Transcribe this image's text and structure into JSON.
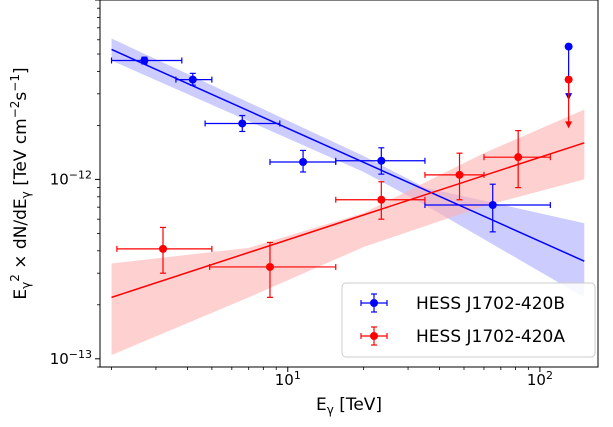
{
  "chart_data": {
    "type": "scatter",
    "xscale": "log",
    "yscale": "log",
    "xlim": [
      1.8,
      170
    ],
    "ylim": [
      9e-14,
      1e-11
    ],
    "xlabel_base": "E",
    "xlabel_sub": "γ",
    "xlabel_unit": "[TeV]",
    "ylabel": "E_γ² × dN/dE_γ [TeV cm⁻²s⁻¹]",
    "ylabel_parts": {
      "e": "E",
      "sub": "γ",
      "sup": "2",
      "mid": " × dN/dE",
      "sub2": "γ",
      "unit": " [TeV cm",
      "unit_sup": "−2",
      "unit_end": "s",
      "unit_sup2": "−1",
      "close": "]"
    },
    "x_ticks": [
      {
        "value": 10,
        "base": "10",
        "exp": "1"
      },
      {
        "value": 100,
        "base": "10",
        "exp": "2"
      }
    ],
    "y_ticks": [
      {
        "value": 1e-12,
        "base": "10",
        "exp": "−12"
      },
      {
        "value": 1e-13,
        "base": "10",
        "exp": "−13"
      }
    ],
    "grid": false,
    "legend_position": "bottom-right",
    "legend": [
      {
        "label": "HESS J1702-420B",
        "color": "#0000ff"
      },
      {
        "label": "HESS J1702-420A",
        "color": "#ff0000"
      }
    ],
    "series": [
      {
        "name": "HESS J1702-420B",
        "color": "#0000ff",
        "band_color": "#aaaaff",
        "fit": {
          "x": [
            2.0,
            150
          ],
          "y": [
            5.3e-12,
            3.5e-13
          ]
        },
        "band": {
          "x": [
            2.0,
            20,
            35,
            150
          ],
          "lower": [
            4.6e-12,
            1.1e-12,
            7.2e-13,
            2.2e-13
          ],
          "upper": [
            6.1e-12,
            1.35e-12,
            9e-13,
            5.7e-13
          ]
        },
        "points": [
          {
            "x": 2.7,
            "y": 4.6e-12,
            "xlo": 2.0,
            "xhi": 3.8,
            "ylo": 4.4e-12,
            "yhi": 4.8e-12
          },
          {
            "x": 4.2,
            "y": 3.6e-12,
            "xlo": 3.6,
            "xhi": 5.0,
            "ylo": 3.35e-12,
            "yhi": 3.9e-12
          },
          {
            "x": 6.6,
            "y": 2.05e-12,
            "xlo": 4.7,
            "xhi": 9.3,
            "ylo": 1.85e-12,
            "yhi": 2.27e-12
          },
          {
            "x": 11.5,
            "y": 1.25e-12,
            "xlo": 8.5,
            "xhi": 15.5,
            "ylo": 1.1e-12,
            "yhi": 1.45e-12
          },
          {
            "x": 23.5,
            "y": 1.27e-12,
            "xlo": 15.5,
            "xhi": 35.0,
            "ylo": 1.07e-12,
            "yhi": 1.5e-12
          },
          {
            "x": 65.0,
            "y": 7.2e-13,
            "xlo": 35.0,
            "xhi": 110.0,
            "ylo": 5.1e-13,
            "yhi": 9.4e-13
          }
        ],
        "upper_limit": {
          "x": 130,
          "y": 5.5e-12,
          "ylo": 2.8e-12
        }
      },
      {
        "name": "HESS J1702-420A",
        "color": "#ff0000",
        "band_color": "#ffb0b0",
        "fit": {
          "x": [
            2.0,
            150
          ],
          "y": [
            2.2e-13,
            1.6e-12
          ]
        },
        "band": {
          "x": [
            2.0,
            7,
            20,
            60,
            150
          ],
          "lower": [
            1.05e-13,
            2.2e-13,
            4.2e-13,
            7.1e-13,
            1e-12
          ],
          "upper": [
            3.4e-13,
            4.15e-13,
            6.5e-13,
            1.4e-12,
            2.45e-12
          ]
        },
        "points": [
          {
            "x": 3.2,
            "y": 4.1e-13,
            "xlo": 2.1,
            "xhi": 5.0,
            "ylo": 3e-13,
            "yhi": 5.4e-13
          },
          {
            "x": 8.5,
            "y": 3.25e-13,
            "xlo": 4.9,
            "xhi": 15.5,
            "ylo": 2.2e-13,
            "yhi": 4.45e-13
          },
          {
            "x": 23.5,
            "y": 7.7e-13,
            "xlo": 15.5,
            "xhi": 35.0,
            "ylo": 6e-13,
            "yhi": 9.7e-13
          },
          {
            "x": 48.0,
            "y": 1.06e-12,
            "xlo": 35.0,
            "xhi": 60.0,
            "ylo": 7.7e-13,
            "yhi": 1.4e-12
          },
          {
            "x": 82.0,
            "y": 1.33e-12,
            "xlo": 60.0,
            "xhi": 110.0,
            "ylo": 9e-13,
            "yhi": 1.87e-12
          }
        ],
        "upper_limit": {
          "x": 130,
          "y": 3.6e-12,
          "ylo": 1.95e-12
        }
      }
    ]
  }
}
